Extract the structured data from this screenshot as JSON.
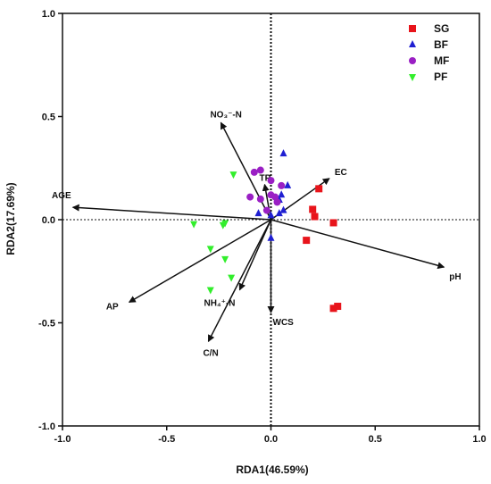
{
  "chart_data": {
    "type": "scatter",
    "xlabel": "RDA1(46.59%)",
    "ylabel": "RDA2(17.69%)",
    "xlim": [
      -1.0,
      1.0
    ],
    "ylim": [
      -1.0,
      1.0
    ],
    "x_ticks": [
      -1.0,
      -0.5,
      0.0,
      0.5,
      1.0
    ],
    "y_ticks": [
      -1.0,
      -0.5,
      0.0,
      0.5,
      1.0
    ],
    "x_tick_labels": [
      "-1.0",
      "-0.5",
      "0.0",
      "0.5",
      "1.0"
    ],
    "y_tick_labels": [
      "-1.0",
      "-0.5",
      "0.0",
      "0.5",
      "1.0"
    ],
    "grid": false,
    "zero_lines": "dotted",
    "legend_position": "top-right",
    "series": [
      {
        "name": "SG",
        "marker": "square",
        "color": "#e8141b",
        "points": [
          [
            0.23,
            0.15
          ],
          [
            0.2,
            0.05
          ],
          [
            0.21,
            0.015
          ],
          [
            0.3,
            -0.015
          ],
          [
            0.17,
            -0.1
          ],
          [
            0.3,
            -0.43
          ],
          [
            0.32,
            -0.42
          ]
        ]
      },
      {
        "name": "BF",
        "marker": "triangle-up",
        "color": "#1f1fd2",
        "points": [
          [
            0.06,
            0.32
          ],
          [
            0.08,
            0.165
          ],
          [
            0.05,
            0.12
          ],
          [
            0.04,
            0.095
          ],
          [
            0.06,
            0.045
          ],
          [
            0.04,
            0.03
          ],
          [
            0.0,
            0.02
          ],
          [
            -0.06,
            0.03
          ],
          [
            0.0,
            -0.09
          ]
        ]
      },
      {
        "name": "MF",
        "marker": "circle",
        "color": "#9a1fc4",
        "points": [
          [
            -0.08,
            0.23
          ],
          [
            -0.05,
            0.24
          ],
          [
            0.0,
            0.19
          ],
          [
            0.05,
            0.165
          ],
          [
            0.0,
            0.12
          ],
          [
            0.02,
            0.11
          ],
          [
            -0.05,
            0.1
          ],
          [
            0.03,
            0.085
          ],
          [
            -0.02,
            0.045
          ],
          [
            -0.1,
            0.11
          ]
        ]
      },
      {
        "name": "PF",
        "marker": "triangle-down",
        "color": "#32ee2c",
        "points": [
          [
            -0.18,
            0.22
          ],
          [
            -0.37,
            -0.02
          ],
          [
            -0.22,
            -0.015
          ],
          [
            -0.23,
            -0.025
          ],
          [
            -0.29,
            -0.14
          ],
          [
            -0.22,
            -0.19
          ],
          [
            -0.19,
            -0.28
          ],
          [
            -0.29,
            -0.34
          ]
        ]
      }
    ],
    "vectors": [
      {
        "label": "AGE",
        "x": -0.95,
        "y": 0.06
      },
      {
        "label": "NO₃⁻-N",
        "x": -0.24,
        "y": 0.47
      },
      {
        "label": "TP",
        "x": -0.03,
        "y": 0.17
      },
      {
        "label": "EC",
        "x": 0.28,
        "y": 0.2
      },
      {
        "label": "pH",
        "x": 0.83,
        "y": -0.23
      },
      {
        "label": "WCS",
        "x": 0.0,
        "y": -0.45
      },
      {
        "label": "NH₄⁺-N",
        "x": -0.15,
        "y": -0.34
      },
      {
        "label": "C/N",
        "x": -0.3,
        "y": -0.59
      },
      {
        "label": "AP",
        "x": -0.68,
        "y": -0.4
      }
    ]
  }
}
